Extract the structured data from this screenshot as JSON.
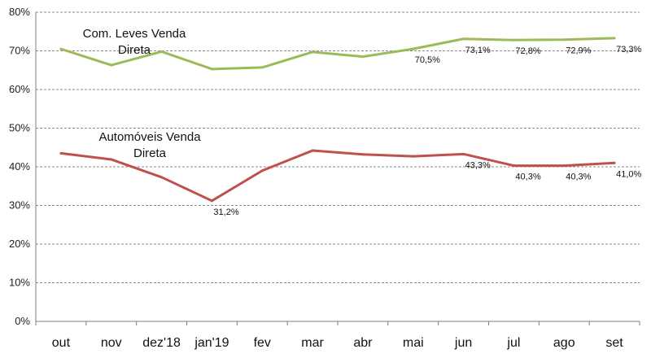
{
  "chart_data": {
    "type": "line",
    "categories": [
      "out",
      "nov",
      "dez'18",
      "jan'19",
      "fev",
      "mar",
      "abr",
      "mai",
      "jun",
      "jul",
      "ago",
      "set"
    ],
    "ylim": [
      0,
      80
    ],
    "yticks": [
      "0%",
      "10%",
      "20%",
      "30%",
      "40%",
      "50%",
      "60%",
      "70%",
      "80%"
    ],
    "grid": true,
    "series": [
      {
        "name_lines": [
          "Com. Leves Venda",
          "Direta"
        ],
        "color": "#9BBB59",
        "values": [
          70.5,
          66.3,
          69.8,
          65.3,
          65.7,
          69.7,
          68.5,
          70.5,
          73.1,
          72.8,
          72.9,
          73.3
        ],
        "data_labels": [
          null,
          null,
          null,
          null,
          null,
          null,
          null,
          "70,5%",
          "73,1%",
          "72,8%",
          "72,9%",
          "73,3%"
        ]
      },
      {
        "name_lines": [
          "Automóveis Venda",
          "Direta"
        ],
        "color": "#C0504D",
        "values": [
          43.5,
          41.9,
          37.3,
          31.2,
          39.0,
          44.2,
          43.2,
          42.7,
          43.3,
          40.3,
          40.3,
          41.0
        ],
        "data_labels": [
          null,
          null,
          null,
          "31,2%",
          null,
          null,
          null,
          null,
          "43,3%",
          "40,3%",
          "40,3%",
          "41,0%"
        ]
      }
    ]
  }
}
